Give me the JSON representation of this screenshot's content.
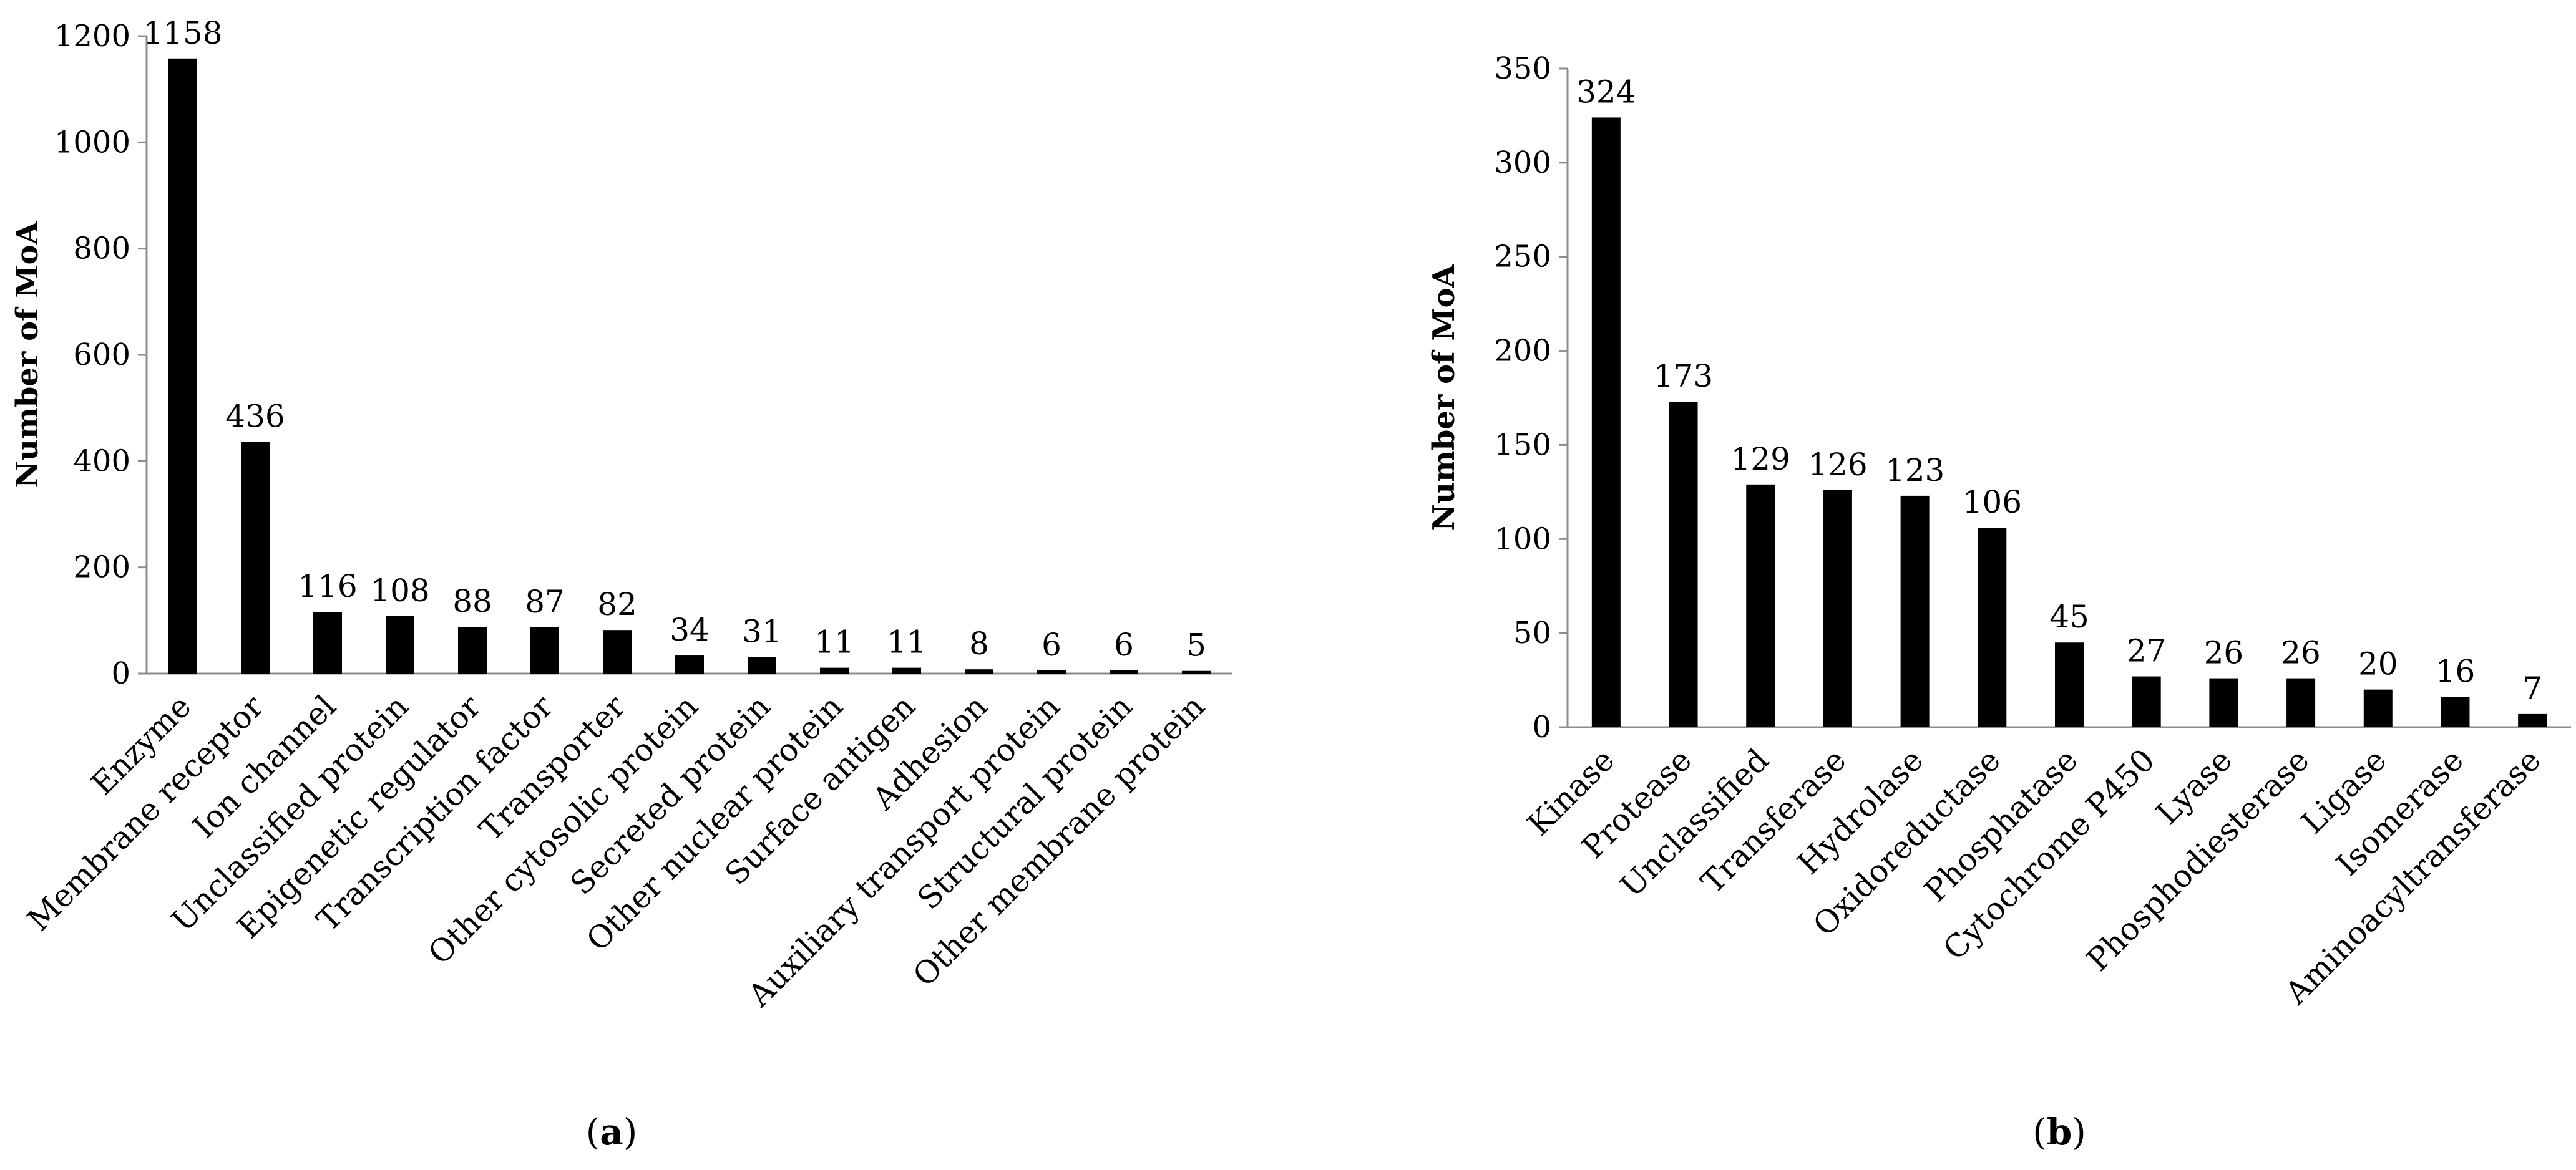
{
  "chart_data": [
    {
      "type": "bar",
      "caption": "a",
      "ylabel": "Number of MoA",
      "ylim": [
        0,
        1200
      ],
      "yticks": [
        0,
        200,
        400,
        600,
        800,
        1000,
        1200
      ],
      "grid": false,
      "categories": [
        "Enzyme",
        "Membrane receptor",
        "Ion channel",
        "Unclassified protein",
        "Epigenetic regulator",
        "Transcription factor",
        "Transporter",
        "Other cytosolic protein",
        "Secreted protein",
        "Other nuclear protein",
        "Surface antigen",
        "Adhesion",
        "Auxiliary transport protein",
        "Structural protein",
        "Other membrane protein"
      ],
      "values": [
        1158,
        436,
        116,
        108,
        88,
        87,
        82,
        34,
        31,
        11,
        11,
        8,
        6,
        6,
        5
      ],
      "bar_color": "#000000"
    },
    {
      "type": "bar",
      "caption": "b",
      "ylabel": "Number of MoA",
      "ylim": [
        0,
        350
      ],
      "yticks": [
        0,
        50,
        100,
        150,
        200,
        250,
        300,
        350
      ],
      "grid": false,
      "categories": [
        "Kinase",
        "Protease",
        "Unclassified",
        "Transferase",
        "Hydrolase",
        "Oxidoreductase",
        "Phosphatase",
        "Cytochrome P450",
        "Lyase",
        "Phosphodiesterase",
        "Ligase",
        "Isomerase",
        "Aminoacyltransferase"
      ],
      "values": [
        324,
        173,
        129,
        126,
        123,
        106,
        45,
        27,
        26,
        26,
        20,
        16,
        7
      ],
      "bar_color": "#000000"
    }
  ]
}
